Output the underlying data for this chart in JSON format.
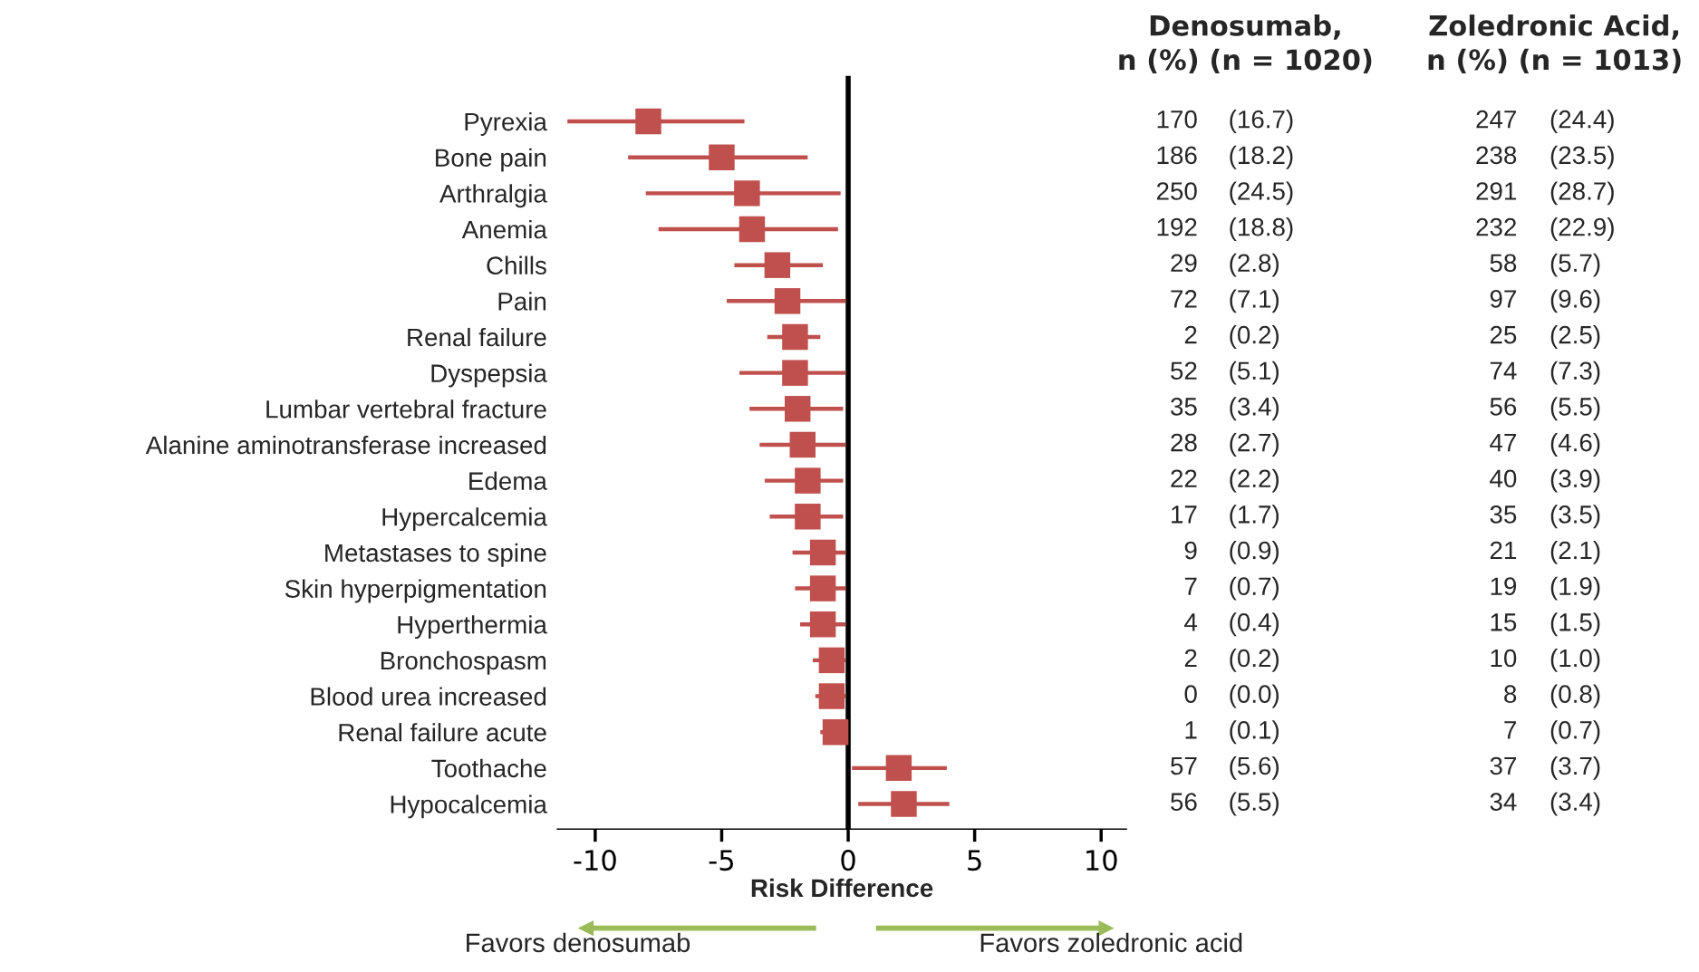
{
  "chart_data": {
    "type": "scatter",
    "xlabel": "Risk Difference",
    "categories": [
      "Pyrexia",
      "Bone pain",
      "Arthralgia",
      "Anemia",
      "Chills",
      "Pain",
      "Renal failure",
      "Dyspepsia",
      "Lumbar vertebral fracture",
      "Alanine aminotransferase increased",
      "Edema",
      "Hypercalcemia",
      "Metastases to spine",
      "Skin hyperpigmentation",
      "Hyperthermia",
      "Bronchospasm",
      "Blood urea increased",
      "Renal failure acute",
      "Toothache",
      "Hypocalcemia"
    ],
    "orientation": "horizontal",
    "series": [
      {
        "color": "#c0504d",
        "marker": "square",
        "values": [
          -7.9,
          -5.0,
          -4.0,
          -3.8,
          -2.8,
          -2.4,
          -2.1,
          -2.1,
          -2.0,
          -1.8,
          -1.6,
          -1.6,
          -1.0,
          -1.0,
          -1.0,
          -0.65,
          -0.65,
          -0.5,
          2.0,
          2.2
        ],
        "errors": [
          [
            -11.1,
            -4.1
          ],
          [
            -8.7,
            -1.6
          ],
          [
            -8.0,
            -0.3
          ],
          [
            -7.5,
            -0.4
          ],
          [
            -4.5,
            -1.0
          ],
          [
            -4.8,
            -0.1
          ],
          [
            -3.2,
            -1.1
          ],
          [
            -4.3,
            -0.1
          ],
          [
            -3.9,
            -0.2
          ],
          [
            -3.5,
            -0.1
          ],
          [
            -3.3,
            -0.2
          ],
          [
            -3.1,
            -0.2
          ],
          [
            -2.2,
            -0.1
          ],
          [
            -2.1,
            -0.1
          ],
          [
            -1.9,
            -0.1
          ],
          [
            -1.4,
            -0.1
          ],
          [
            -1.3,
            -0.1
          ],
          [
            -1.1,
            -0.1
          ],
          [
            0.15,
            3.9
          ],
          [
            0.4,
            4.0
          ]
        ]
      }
    ],
    "xlim": [
      -11.5,
      11
    ],
    "xticks": [
      -10,
      -5,
      0,
      5,
      10
    ],
    "ref_lines": [
      {
        "axis": "x",
        "value": 0,
        "color": "#000000"
      }
    ],
    "grid": false,
    "legend": false,
    "annotations": [
      "Denosumab,\nn (%) (n = 1020)",
      "Zoledronic Acid,\nn (%) (n = 1013)",
      "170",
      "(16.7)",
      "247",
      "(24.4)",
      "186",
      "(18.2)",
      "238",
      "(23.5)",
      "250",
      "(24.5)",
      "291",
      "(28.7)",
      "192",
      "(18.8)",
      "232",
      "(22.9)",
      "29",
      "(2.8)",
      "58",
      "(5.7)",
      "72",
      "(7.1)",
      "97",
      "(9.6)",
      "2",
      "(0.2)",
      "25",
      "(2.5)",
      "52",
      "(5.1)",
      "74",
      "(7.3)",
      "35",
      "(3.4)",
      "56",
      "(5.5)",
      "28",
      "(2.7)",
      "47",
      "(4.6)",
      "22",
      "(2.2)",
      "40",
      "(3.9)",
      "17",
      "(1.7)",
      "35",
      "(3.5)",
      "9",
      "(0.9)",
      "21",
      "(2.1)",
      "7",
      "(0.7)",
      "19",
      "(1.9)",
      "4",
      "(0.4)",
      "15",
      "(1.5)",
      "2",
      "(0.2)",
      "10",
      "(1.0)",
      "0",
      "(0.0)",
      "8",
      "(0.8)",
      "1",
      "(0.1)",
      "7",
      "(0.7)",
      "57",
      "(5.6)",
      "37",
      "(3.7)",
      "56",
      "(5.5)",
      "34",
      "(3.4)",
      "Favors denosumab",
      "Favors zoledronic acid"
    ]
  }
}
